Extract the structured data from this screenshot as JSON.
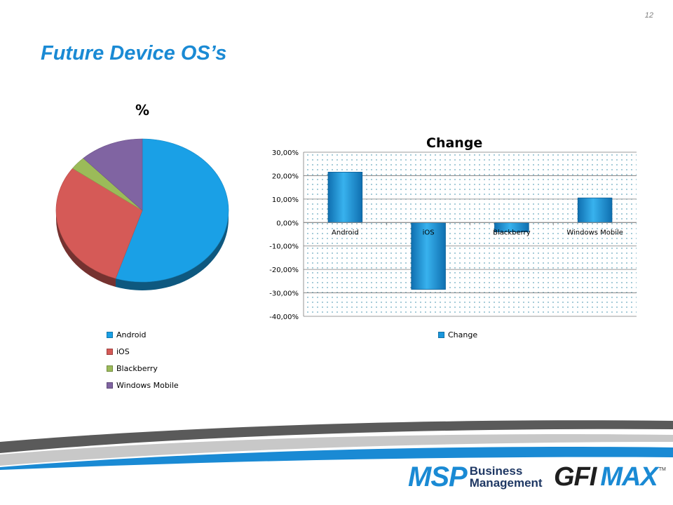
{
  "page": {
    "number": "12",
    "title": "Future Device OS’s"
  },
  "colors": {
    "title": "#1a8ad4",
    "android": "#1aa0e6",
    "ios": "#d55a57",
    "blackberry": "#9bbb59",
    "windows_mobile": "#8064a2",
    "bar": "#1996dc"
  },
  "chart_data": [
    {
      "type": "pie",
      "title": "%",
      "categories": [
        "Android",
        "iOS",
        "Blackberry",
        "Windows Mobile"
      ],
      "values": [
        55,
        30,
        3,
        12
      ],
      "style": "3d",
      "legend": "bottom-left"
    },
    {
      "type": "bar",
      "title": "Change",
      "categories": [
        "Android",
        "iOS",
        "Blackberry",
        "Windows Mobile"
      ],
      "series": [
        {
          "name": "Change",
          "values": [
            21.5,
            -28.5,
            -4.0,
            10.5
          ]
        }
      ],
      "ylim": [
        -40,
        30
      ],
      "yticks": [
        "30,00%",
        "20,00%",
        "10,00%",
        "0,00%",
        "-10,00%",
        "-20,00%",
        "-30,00%",
        "-40,00%"
      ],
      "grid": true,
      "legend": "bottom"
    }
  ],
  "logos": {
    "msp_big": "MSP",
    "msp_line1": "Business",
    "msp_line2": "Management",
    "gfi": "GFI",
    "max": "MAX",
    "tm": "TM"
  }
}
